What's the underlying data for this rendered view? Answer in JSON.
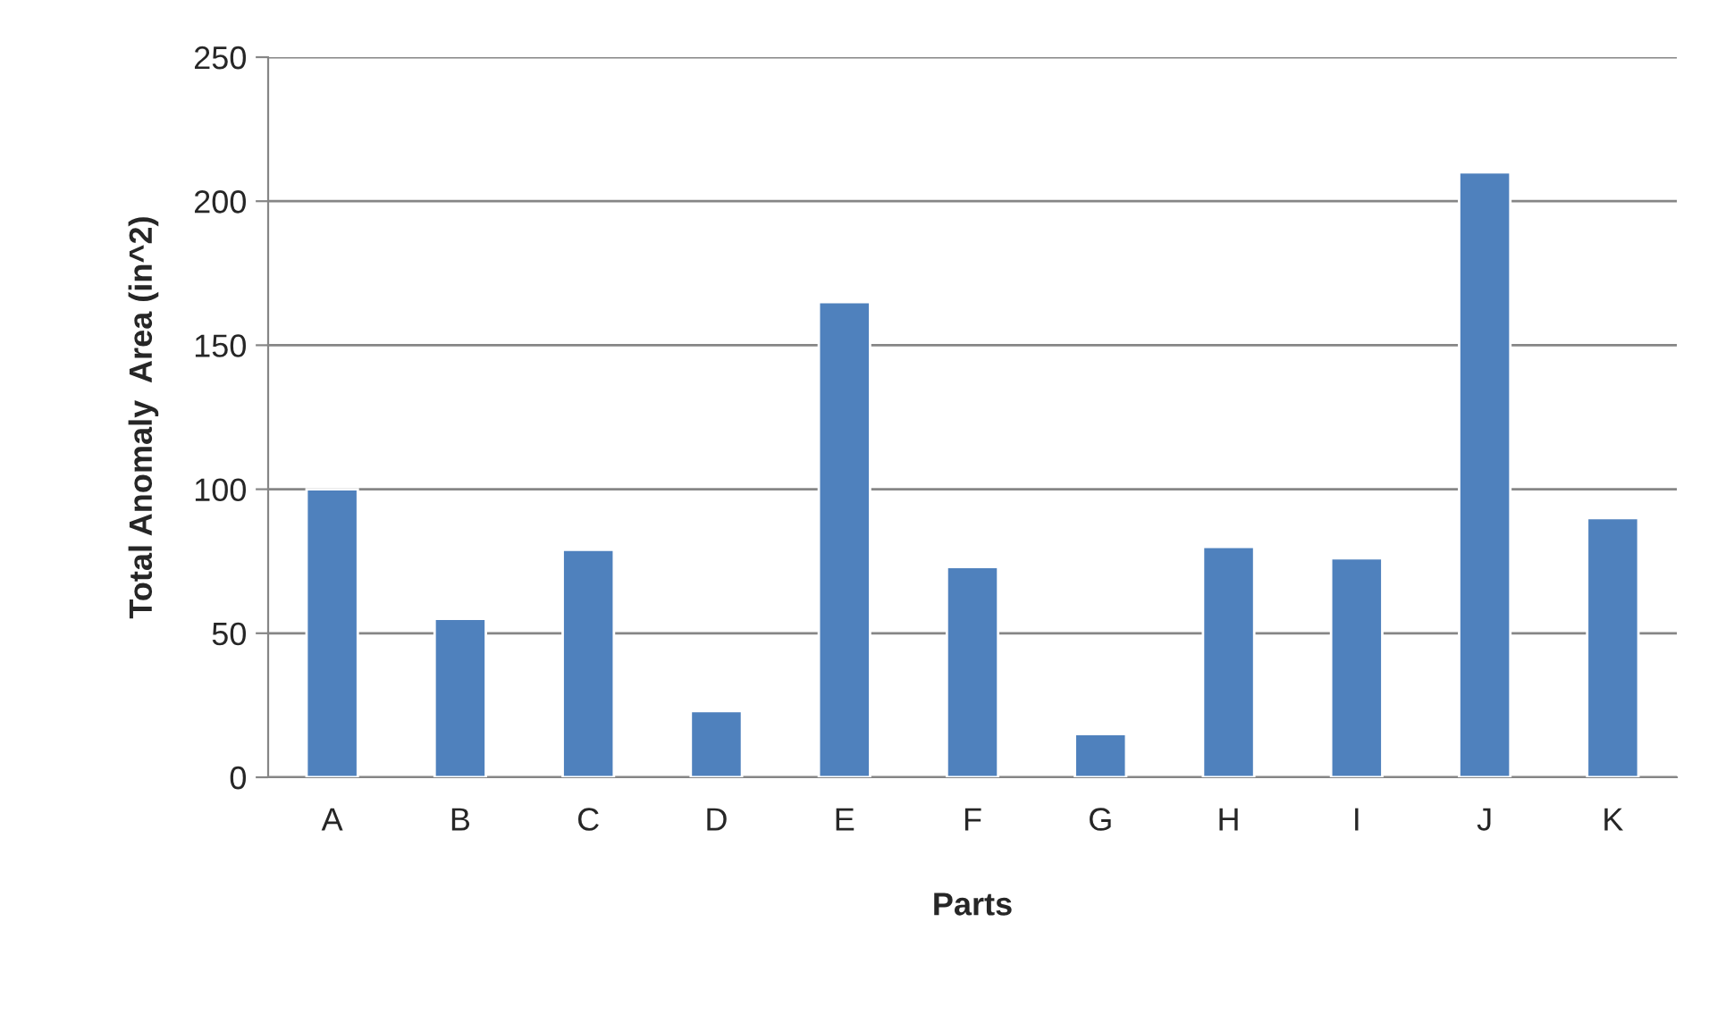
{
  "chart_data": {
    "type": "bar",
    "xlabel": "Parts",
    "ylabel": "Total Anomaly  Area (in^2)",
    "categories": [
      "A",
      "B",
      "C",
      "D",
      "E",
      "F",
      "G",
      "H",
      "I",
      "J",
      "K"
    ],
    "values": [
      100,
      55,
      79,
      23,
      165,
      73,
      15,
      80,
      76,
      210,
      90
    ],
    "color": "#4f81bd",
    "ylim": [
      0,
      250
    ],
    "yticks": [
      0,
      50,
      100,
      150,
      200,
      250
    ],
    "grid": "y",
    "legend": false
  }
}
